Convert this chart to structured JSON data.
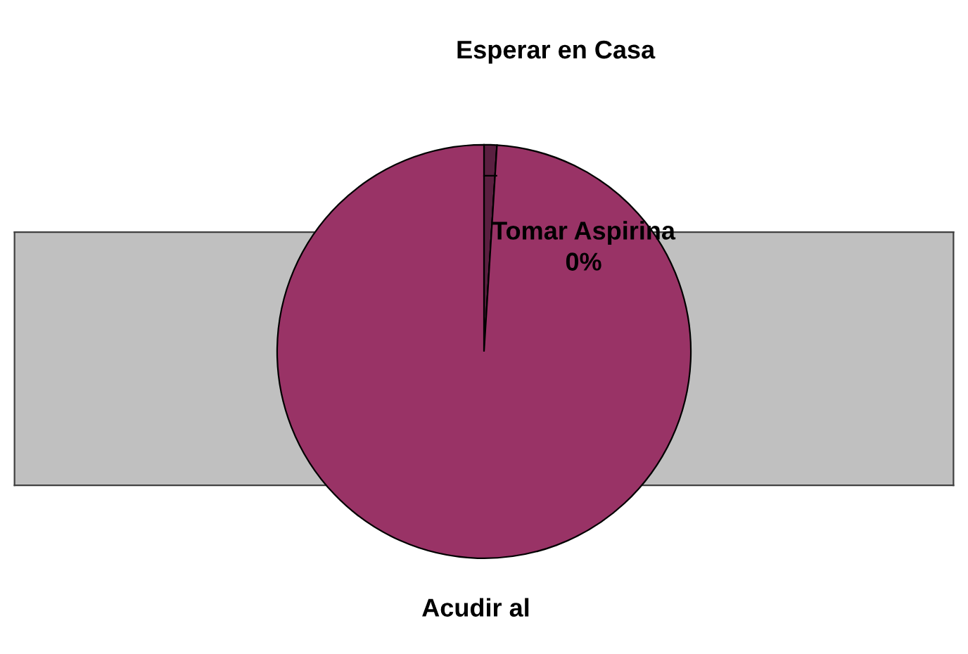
{
  "chart_data": {
    "type": "pie",
    "categories": [
      "Esperar en Casa",
      "Tomar Aspirina",
      "Acudir al"
    ],
    "values": [
      1,
      0,
      99
    ],
    "colors": [
      "#5a1f40",
      "#7a2a55",
      "#993366"
    ],
    "value_labels": [
      null,
      "0%",
      null
    ]
  }
}
